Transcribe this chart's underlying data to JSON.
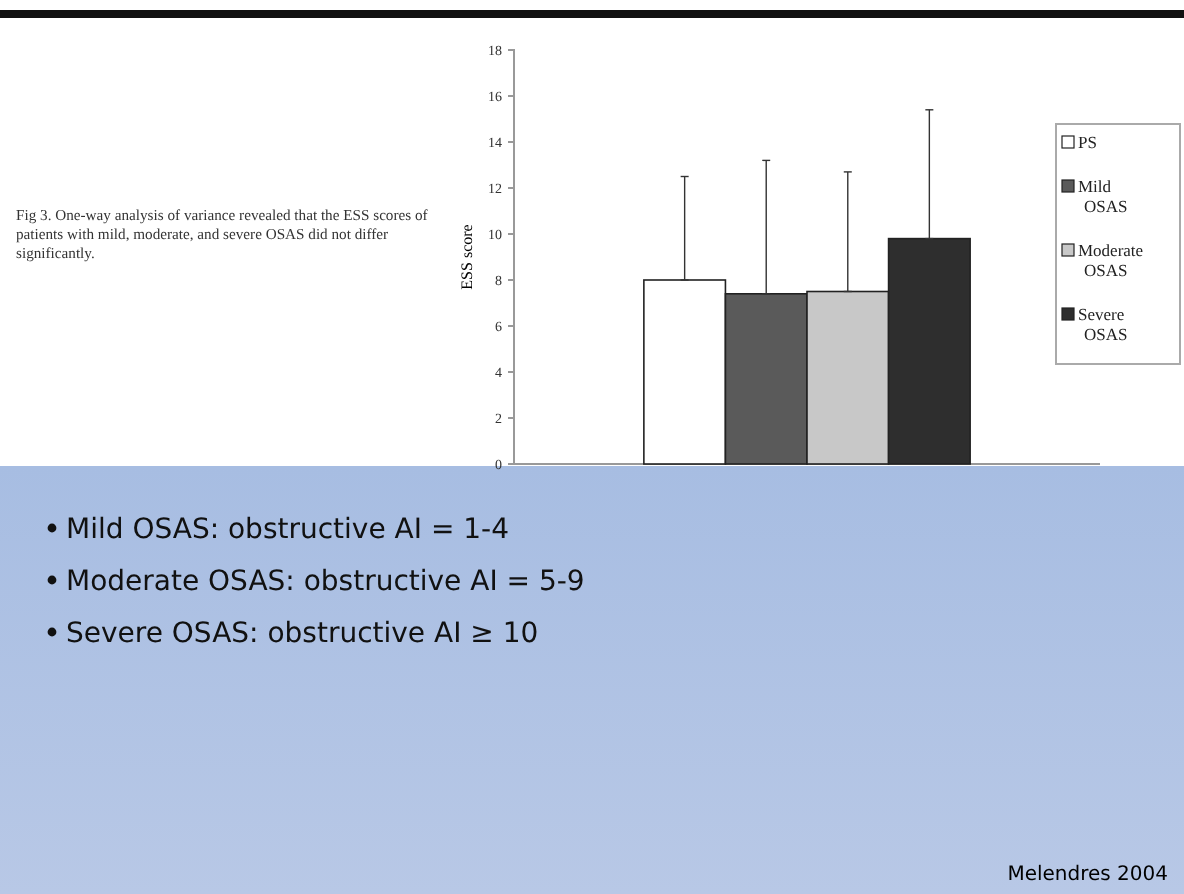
{
  "chart_data": {
    "type": "bar",
    "ylabel": "ESS score",
    "categories": [
      null
    ],
    "series": [
      {
        "name": "PS",
        "color": "#ffffff",
        "values": [
          8.0
        ],
        "errors": [
          [
            8.0,
            12.5
          ]
        ]
      },
      {
        "name": "Mild OSAS",
        "color": "#5a5a5a",
        "values": [
          7.4
        ],
        "errors": [
          [
            7.4,
            13.2
          ]
        ]
      },
      {
        "name": "Moderate OSAS",
        "color": "#c8c8c8",
        "values": [
          7.5
        ],
        "errors": [
          [
            7.5,
            12.7
          ]
        ]
      },
      {
        "name": "Severe OSAS",
        "color": "#2e2e2e",
        "values": [
          9.8
        ],
        "errors": [
          [
            9.8,
            15.4
          ]
        ]
      }
    ],
    "ylim": [
      0,
      18
    ],
    "yticks": [
      0,
      2,
      4,
      6,
      8,
      10,
      12,
      14,
      16,
      18
    ],
    "legend": "right",
    "annotations": [
      "Fig 3. One-way analysis of variance revealed that the ESS scores of patients with mild, moderate, and severe OSAS did not differ significantly.",
      "Mild OSAS: obstructive AI = 1-4",
      "Moderate OSAS: obstructive AI = 5-9",
      "Severe OSAS: obstructive AI ≥ 10",
      "Melendres 2004"
    ]
  }
}
